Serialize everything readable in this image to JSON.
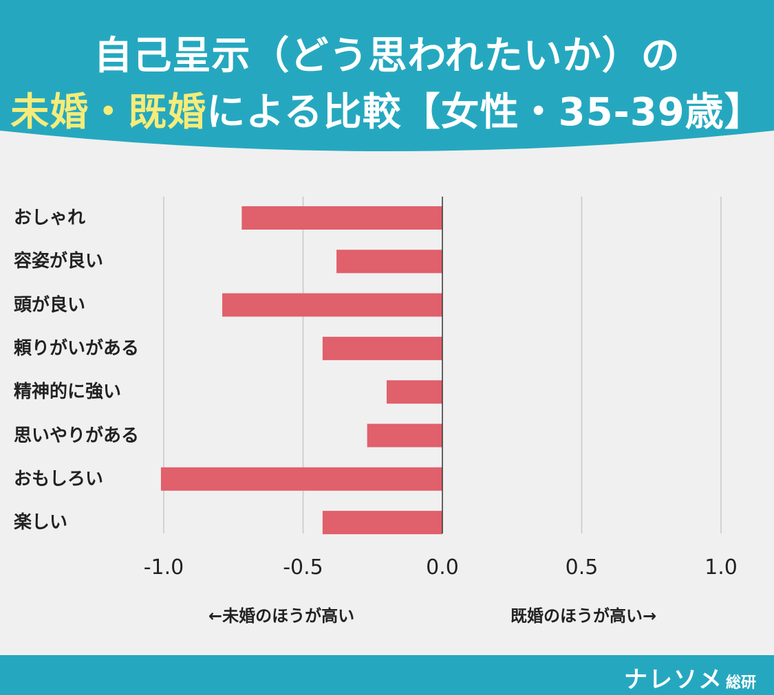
{
  "title": {
    "line1": "自己呈示（どう思われたいか）の",
    "line2_hl1": "未婚・既婚",
    "line2_rest": "による比較【女性・35-39歳】"
  },
  "chart_data": {
    "type": "bar",
    "orientation": "horizontal",
    "categories": [
      "おしゃれ",
      "容姿が良い",
      "頭が良い",
      "頼りがいがある",
      "精神的に強い",
      "思いやりがある",
      "おもしろい",
      "楽しい"
    ],
    "values": [
      -0.72,
      -0.38,
      -0.79,
      -0.43,
      -0.2,
      -0.27,
      -1.01,
      -0.43
    ],
    "xlim": [
      -1.0,
      1.0
    ],
    "xticks": [
      "-1.0",
      "-0.5",
      "0.0",
      "0.5",
      "1.0"
    ],
    "left_direction_label": "←未婚のほうが高い",
    "right_direction_label": "既婚のほうが高い→",
    "grid": true,
    "bar_color": "#e0606c"
  },
  "brand": {
    "name": "ナレソメ",
    "suffix": "総研"
  },
  "colors": {
    "teal": "#25a8bf",
    "title_highlight": "#f5ec7a",
    "background": "#f0f0f0"
  }
}
